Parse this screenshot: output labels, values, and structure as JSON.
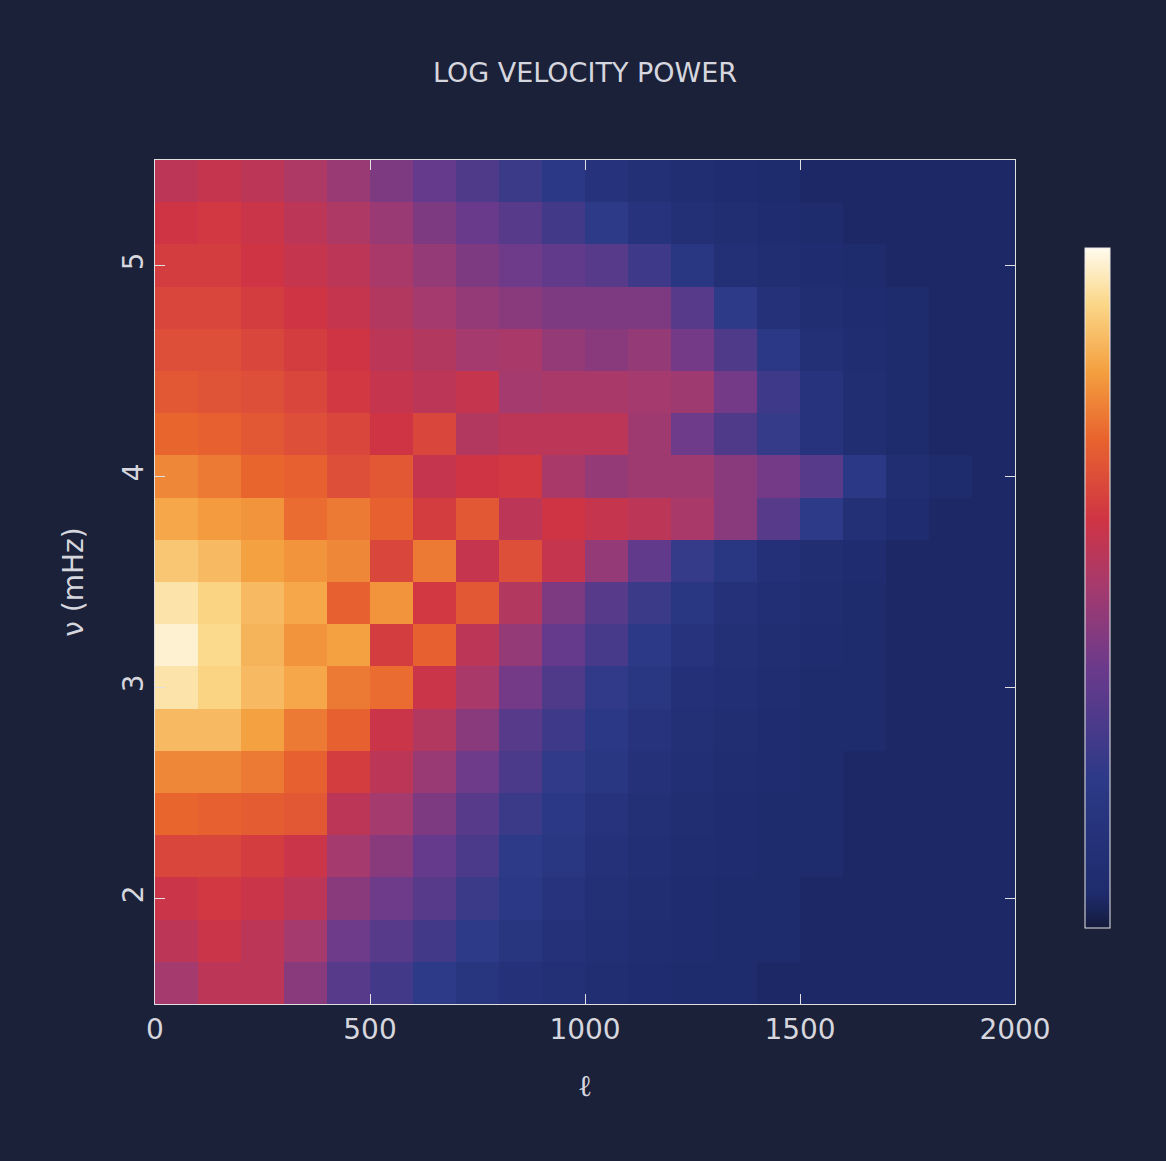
{
  "chart_data": {
    "type": "heatmap",
    "title": "LOG VELOCITY POWER",
    "x_label": "ℓ",
    "y_label": "ν (mHz)",
    "x": [
      50,
      150,
      250,
      350,
      450,
      550,
      650,
      750,
      850,
      950,
      1050,
      1150,
      1250,
      1350,
      1450,
      1550,
      1650,
      1750,
      1850,
      1950
    ],
    "y": [
      1.6,
      1.8,
      2.0,
      2.2,
      2.4,
      2.6,
      2.8,
      3.0,
      3.2,
      3.4,
      3.6,
      3.8,
      4.0,
      4.2,
      4.4,
      4.6,
      4.8,
      5.0,
      5.2,
      5.4
    ],
    "z": [
      [
        5.5,
        6,
        6,
        5,
        4,
        3.5,
        3,
        2.5,
        2.2,
        2,
        1.8,
        1.6,
        1.5,
        1.5,
        1.4,
        1.4,
        1.4,
        1.4,
        1.4,
        1.4
      ],
      [
        6,
        6.3,
        6,
        5.5,
        4.5,
        4,
        3.5,
        3,
        2.5,
        2.2,
        1.9,
        1.7,
        1.6,
        1.5,
        1.5,
        1.4,
        1.4,
        1.4,
        1.4,
        1.4
      ],
      [
        6.3,
        6.5,
        6.3,
        6,
        5,
        4.5,
        4,
        3.3,
        2.8,
        2.4,
        2,
        1.8,
        1.6,
        1.5,
        1.5,
        1.4,
        1.4,
        1.4,
        1.4,
        1.4
      ],
      [
        6.8,
        6.8,
        6.6,
        6.3,
        5.5,
        5,
        4.3,
        3.7,
        3,
        2.6,
        2.2,
        1.9,
        1.7,
        1.6,
        1.5,
        1.5,
        1.4,
        1.4,
        1.4,
        1.4
      ],
      [
        7.5,
        7.4,
        7.3,
        7.2,
        6,
        5.5,
        4.8,
        4,
        3.3,
        2.8,
        2.4,
        2,
        1.8,
        1.6,
        1.5,
        1.5,
        1.4,
        1.4,
        1.4,
        1.4
      ],
      [
        8,
        8,
        7.8,
        7.4,
        6.6,
        6,
        5.3,
        4.5,
        3.7,
        3.1,
        2.6,
        2.2,
        1.9,
        1.7,
        1.6,
        1.5,
        1.4,
        1.4,
        1.4,
        1.4
      ],
      [
        8.8,
        8.8,
        8.4,
        7.8,
        7.4,
        6.3,
        5.8,
        5,
        4,
        3.4,
        2.8,
        2.4,
        2,
        1.8,
        1.6,
        1.5,
        1.5,
        1.4,
        1.4,
        1.4
      ],
      [
        9.5,
        9.2,
        8.8,
        8.5,
        7.8,
        7.6,
        6.3,
        5.6,
        4.6,
        3.8,
        3.1,
        2.6,
        2.1,
        1.9,
        1.7,
        1.5,
        1.5,
        1.4,
        1.4,
        1.4
      ],
      [
        9.8,
        9.3,
        8.7,
        8.2,
        8.4,
        6.6,
        7.4,
        6,
        5.2,
        4.3,
        3.6,
        2.9,
        2.4,
        2,
        1.8,
        1.6,
        1.5,
        1.4,
        1.4,
        1.4
      ],
      [
        9.5,
        9.2,
        8.8,
        8.5,
        7.4,
        8.2,
        6.5,
        7.2,
        5.8,
        4.8,
        4,
        3.3,
        2.6,
        2.2,
        1.9,
        1.7,
        1.5,
        1.4,
        1.4,
        1.4
      ],
      [
        9,
        8.8,
        8.4,
        8.2,
        8,
        6.8,
        7.8,
        6.2,
        7,
        6.2,
        5.2,
        4.2,
        3.2,
        2.6,
        2.1,
        1.8,
        1.6,
        1.4,
        1.4,
        1.4
      ],
      [
        8.5,
        8.3,
        8.2,
        7.6,
        7.8,
        7.4,
        6.6,
        7.2,
        6,
        6.4,
        6.2,
        6,
        5.6,
        5,
        4,
        3,
        2,
        1.6,
        1.4,
        1.4
      ],
      [
        8,
        7.8,
        7.5,
        7.4,
        7,
        7.2,
        6.2,
        6.4,
        6.5,
        5.6,
        5.2,
        5.4,
        5.4,
        5,
        4.6,
        4,
        2.8,
        1.8,
        1.5,
        1.4
      ],
      [
        7.5,
        7.4,
        7.2,
        7,
        6.8,
        6.4,
        6.8,
        5.8,
        6,
        6,
        6,
        5.4,
        4.5,
        3.8,
        3.2,
        2.4,
        1.8,
        1.5,
        1.4,
        1.4
      ],
      [
        7.2,
        7.1,
        7,
        6.8,
        6.5,
        6.2,
        6,
        6.2,
        5.5,
        5.6,
        5.6,
        5.5,
        5.4,
        4.6,
        3.4,
        2.4,
        1.8,
        1.5,
        1.4,
        1.4
      ],
      [
        7,
        7,
        6.8,
        6.6,
        6.4,
        6,
        5.8,
        5.5,
        5.6,
        5.2,
        5,
        5.2,
        4.6,
        3.8,
        2.8,
        2,
        1.7,
        1.5,
        1.4,
        1.4
      ],
      [
        6.8,
        6.8,
        6.6,
        6.4,
        6.2,
        5.8,
        5.5,
        5.2,
        5,
        4.8,
        4.8,
        4.8,
        4,
        3,
        2.2,
        1.8,
        1.6,
        1.5,
        1.4,
        1.4
      ],
      [
        6.6,
        6.6,
        6.4,
        6.2,
        6,
        5.6,
        5.2,
        4.8,
        4.5,
        4.2,
        4,
        3.4,
        2.6,
        2,
        1.8,
        1.6,
        1.5,
        1.4,
        1.4,
        1.4
      ],
      [
        6.4,
        6.5,
        6.3,
        6,
        5.7,
        5.3,
        4.8,
        4.4,
        4,
        3.5,
        3,
        2.4,
        2,
        1.8,
        1.6,
        1.5,
        1.4,
        1.4,
        1.4,
        1.4
      ],
      [
        6,
        6.2,
        6,
        5.7,
        5.3,
        4.8,
        4.3,
        3.8,
        3.3,
        2.8,
        2.3,
        2,
        1.8,
        1.6,
        1.5,
        1.4,
        1.4,
        1.4,
        1.4,
        1.4
      ]
    ],
    "zlim": [
      1,
      10
    ],
    "xlim": [
      0,
      2000
    ],
    "ylim": [
      1.5,
      5.5
    ],
    "xticks": [
      0,
      500,
      1000,
      1500,
      2000
    ],
    "yticks": [
      2,
      3,
      4,
      5
    ],
    "grid": false
  }
}
